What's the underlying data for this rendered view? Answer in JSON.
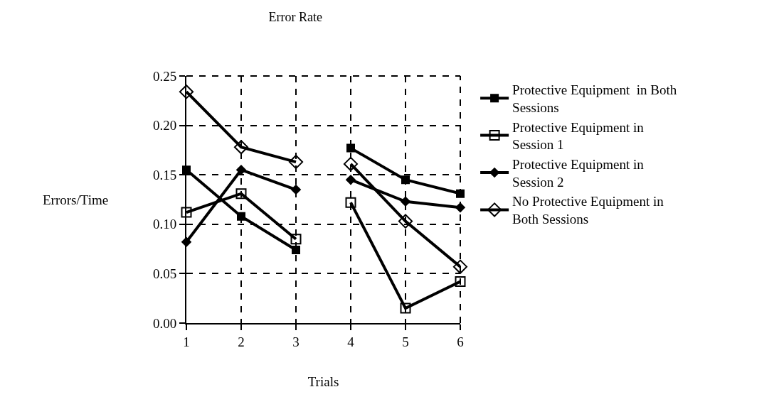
{
  "chart_data": {
    "type": "line",
    "title": "Error Rate",
    "xlabel": "Trials",
    "ylabel": "Errors/Time",
    "x": [
      1,
      2,
      3,
      null,
      4,
      5,
      6
    ],
    "xlim": [
      1,
      6
    ],
    "xticks": [
      1,
      2,
      3,
      4,
      5,
      6
    ],
    "ylim": [
      0,
      0.25
    ],
    "yticks": [
      {
        "value": 0,
        "label": "0.00"
      },
      0.05,
      {
        "value": 0.1,
        "label": "0.10"
      },
      0.15,
      {
        "value": 0.2,
        "label": "0.20"
      },
      0.25
    ],
    "grid": true,
    "legend": "right",
    "line_style": "solid",
    "series": [
      {
        "name": "Protective Equipment  in Both Sessions",
        "color": "#000000",
        "marker": "square",
        "values": [
          0.155,
          0.108,
          0.074,
          null,
          0.177,
          0.145,
          0.131
        ]
      },
      {
        "name": "Protective Equipment in Session 1",
        "color": "#000000",
        "marker": "square-open",
        "values": [
          0.112,
          0.131,
          0.085,
          null,
          0.122,
          0.015,
          0.042
        ]
      },
      {
        "name": "Protective Equipment in Session 2",
        "color": "#000000",
        "marker": "diamond",
        "values": [
          0.082,
          0.155,
          0.135,
          null,
          0.145,
          0.123,
          0.117
        ]
      },
      {
        "name": "No Protective Equipment in Both Sessions",
        "color": "#000000",
        "marker": "diamond-open",
        "values": [
          0.234,
          0.178,
          0.163,
          null,
          0.161,
          0.103,
          0.057
        ]
      }
    ]
  }
}
